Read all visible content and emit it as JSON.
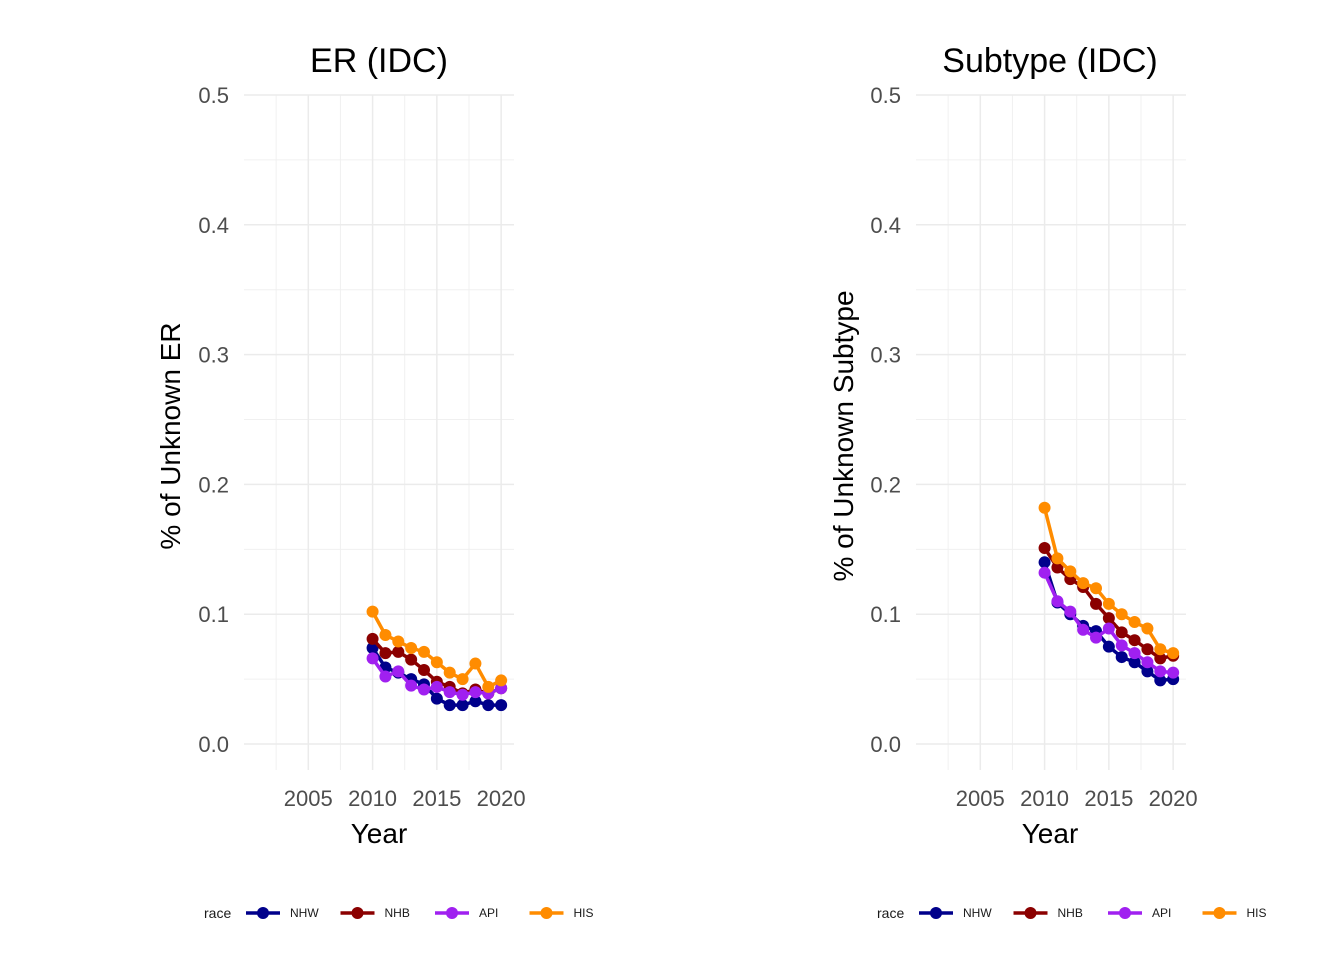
{
  "legend": {
    "title": "race",
    "position": "bottom",
    "entries": [
      {
        "key": "NHW",
        "label": "NHW",
        "color": "#00008B"
      },
      {
        "key": "NHB",
        "label": "NHB",
        "color": "#8B0000"
      },
      {
        "key": "API",
        "label": "API",
        "color": "#A020F0"
      },
      {
        "key": "HIS",
        "label": "HIS",
        "color": "#FF8C00"
      }
    ]
  },
  "chart_data": [
    {
      "type": "line",
      "title": "ER (IDC)",
      "xlabel": "Year",
      "ylabel": "% of Unknown ER",
      "xlim": [
        2000,
        2021
      ],
      "ylim": [
        -0.02,
        0.5
      ],
      "xticks": [
        2005,
        2010,
        2015,
        2020
      ],
      "xtick_labels": [
        "2005",
        "2010",
        "2015",
        "2020"
      ],
      "yticks": [
        0.0,
        0.1,
        0.2,
        0.3,
        0.4,
        0.5
      ],
      "ytick_labels": [
        "0.0",
        "0.1",
        "0.2",
        "0.3",
        "0.4",
        "0.5"
      ],
      "grid": true,
      "x": [
        2010,
        2011,
        2012,
        2013,
        2014,
        2015,
        2016,
        2017,
        2018,
        2019,
        2020
      ],
      "series": [
        {
          "name": "NHW",
          "values": [
            0.074,
            0.059,
            0.055,
            0.05,
            0.046,
            0.035,
            0.03,
            0.03,
            0.033,
            0.03,
            0.03
          ]
        },
        {
          "name": "NHB",
          "values": [
            0.081,
            0.07,
            0.071,
            0.065,
            0.057,
            0.048,
            0.044,
            0.039,
            0.042,
            0.039,
            0.043
          ]
        },
        {
          "name": "API",
          "values": [
            0.066,
            0.052,
            0.056,
            0.045,
            0.042,
            0.044,
            0.04,
            0.038,
            0.04,
            0.039,
            0.043
          ]
        },
        {
          "name": "HIS",
          "values": [
            0.102,
            0.084,
            0.079,
            0.074,
            0.071,
            0.063,
            0.055,
            0.05,
            0.062,
            0.044,
            0.049
          ]
        }
      ]
    },
    {
      "type": "line",
      "title": "Subtype (IDC)",
      "xlabel": "Year",
      "ylabel": "% of Unknown Subtype",
      "xlim": [
        2000,
        2021
      ],
      "ylim": [
        -0.02,
        0.5
      ],
      "xticks": [
        2005,
        2010,
        2015,
        2020
      ],
      "xtick_labels": [
        "2005",
        "2010",
        "2015",
        "2020"
      ],
      "yticks": [
        0.0,
        0.1,
        0.2,
        0.3,
        0.4,
        0.5
      ],
      "ytick_labels": [
        "0.0",
        "0.1",
        "0.2",
        "0.3",
        "0.4",
        "0.5"
      ],
      "grid": true,
      "x": [
        2010,
        2011,
        2012,
        2013,
        2014,
        2015,
        2016,
        2017,
        2018,
        2019,
        2020
      ],
      "series": [
        {
          "name": "NHW",
          "values": [
            0.14,
            0.109,
            0.1,
            0.091,
            0.087,
            0.075,
            0.067,
            0.063,
            0.056,
            0.049,
            0.05
          ]
        },
        {
          "name": "NHB",
          "values": [
            0.151,
            0.136,
            0.127,
            0.121,
            0.108,
            0.097,
            0.086,
            0.08,
            0.073,
            0.066,
            0.068
          ]
        },
        {
          "name": "API",
          "values": [
            0.132,
            0.11,
            0.102,
            0.088,
            0.082,
            0.089,
            0.076,
            0.07,
            0.063,
            0.056,
            0.055
          ]
        },
        {
          "name": "HIS",
          "values": [
            0.182,
            0.143,
            0.133,
            0.124,
            0.12,
            0.108,
            0.1,
            0.094,
            0.089,
            0.073,
            0.07
          ]
        }
      ]
    }
  ]
}
